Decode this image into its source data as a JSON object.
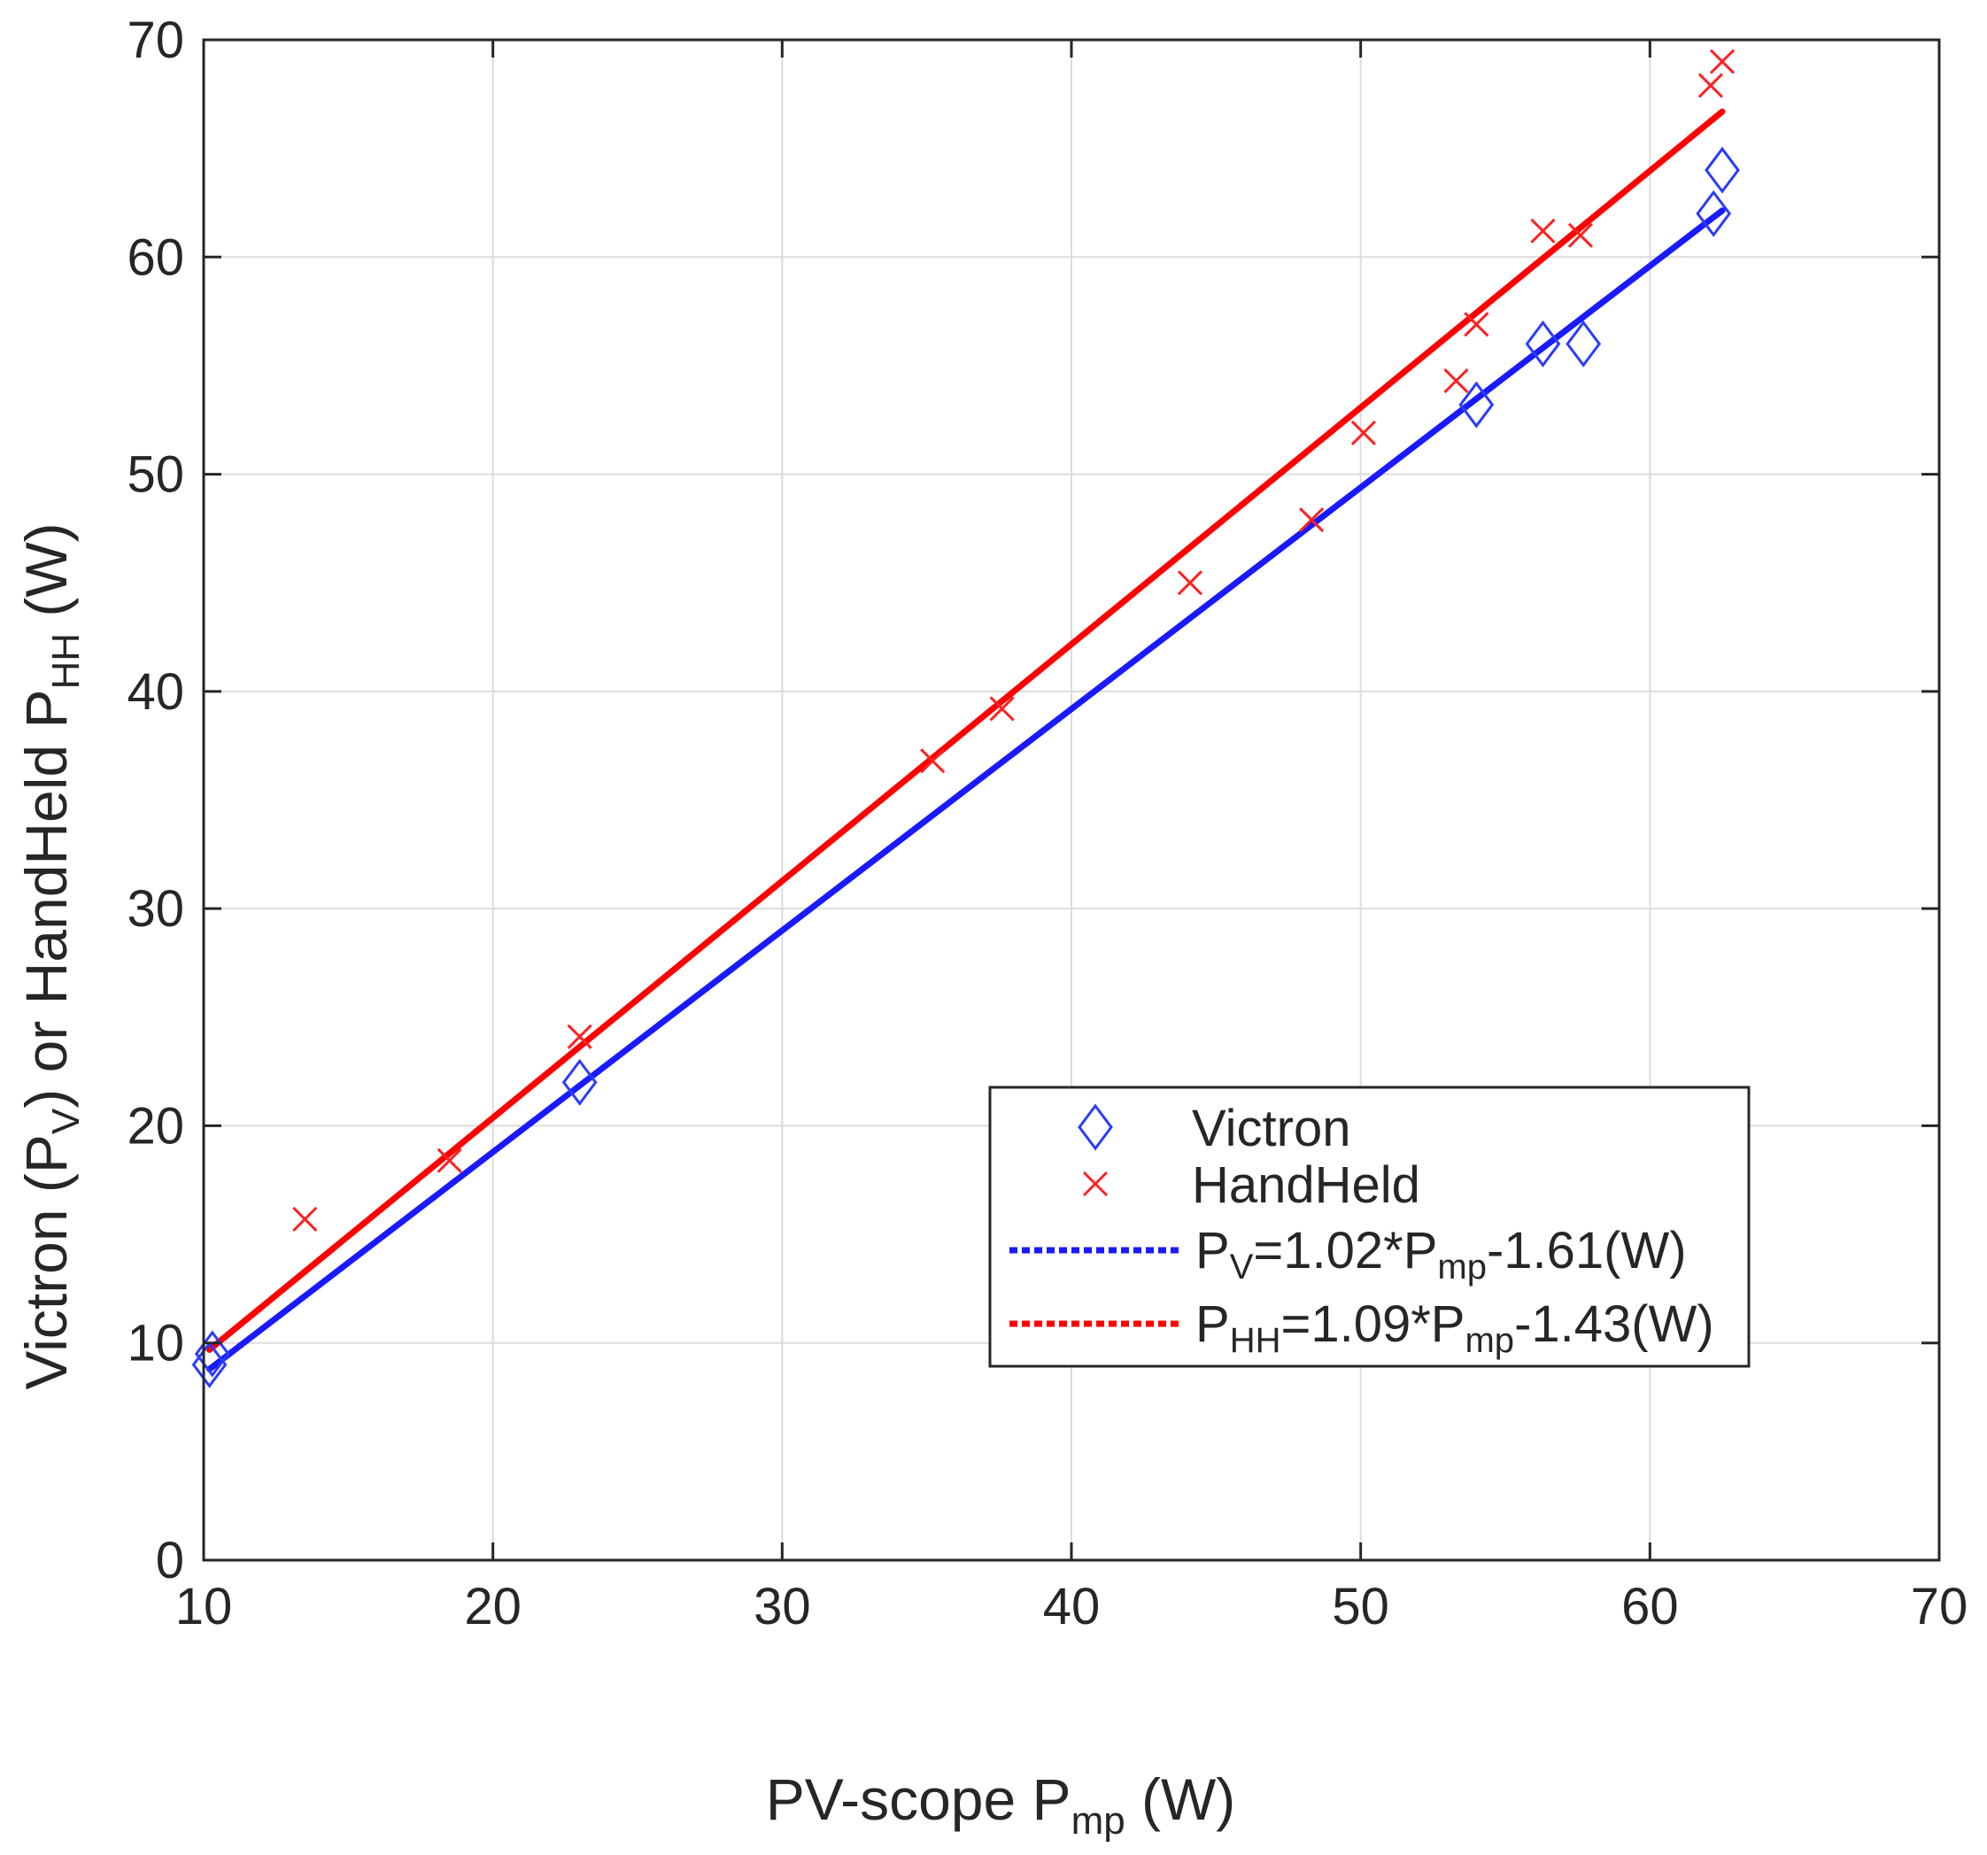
{
  "chart_data": {
    "type": "scatter",
    "title": "",
    "xlabel": {
      "main": "PV-scope  P",
      "sub": "mp",
      "unit": "  (W)"
    },
    "ylabel": {
      "parts": [
        "Victron  (P",
        "V",
        ")  or  HandHeld  P",
        "HH",
        "  (W)"
      ]
    },
    "xlim": [
      10,
      70
    ],
    "ylim": [
      0,
      70
    ],
    "xticks": [
      10,
      20,
      30,
      40,
      50,
      60,
      70
    ],
    "yticks": [
      0,
      10,
      20,
      30,
      40,
      50,
      60,
      70
    ],
    "grid": true,
    "legend_position": "center-right",
    "series": [
      {
        "name": "Victron",
        "marker": "diamond",
        "color": "#2b3bff",
        "points": [
          [
            10.2,
            9.0
          ],
          [
            10.3,
            9.5
          ],
          [
            23.0,
            22.0
          ],
          [
            54.0,
            53.2
          ],
          [
            56.3,
            56.0
          ],
          [
            57.7,
            56.0
          ],
          [
            62.2,
            62.0
          ],
          [
            62.5,
            64.0
          ]
        ]
      },
      {
        "name": "HandHeld",
        "marker": "x",
        "color": "#ff2020",
        "points": [
          [
            13.5,
            15.7
          ],
          [
            18.5,
            18.4
          ],
          [
            23.0,
            24.1
          ],
          [
            35.2,
            36.8
          ],
          [
            37.6,
            39.2
          ],
          [
            44.1,
            45.0
          ],
          [
            48.3,
            47.9
          ],
          [
            50.1,
            51.9
          ],
          [
            53.3,
            54.3
          ],
          [
            54.0,
            56.9
          ],
          [
            56.3,
            61.2
          ],
          [
            57.6,
            61.0
          ],
          [
            62.1,
            67.9
          ],
          [
            62.5,
            69.0
          ]
        ]
      }
    ],
    "fits": [
      {
        "label_parts": [
          "P",
          "V",
          "=1.02*P",
          "mp",
          "-1.61(W)"
        ],
        "slope": 1.02,
        "intercept": -1.61,
        "x_range": [
          10.2,
          62.5
        ],
        "color": "#1a1aff",
        "line": "dotted"
      },
      {
        "label_parts": [
          "P",
          "HH",
          "=1.09*P",
          "mp",
          "-1.43(W)"
        ],
        "slope": 1.09,
        "intercept": -1.43,
        "x_range": [
          10.2,
          62.5
        ],
        "color": "#ff0000",
        "line": "dotted"
      }
    ]
  }
}
